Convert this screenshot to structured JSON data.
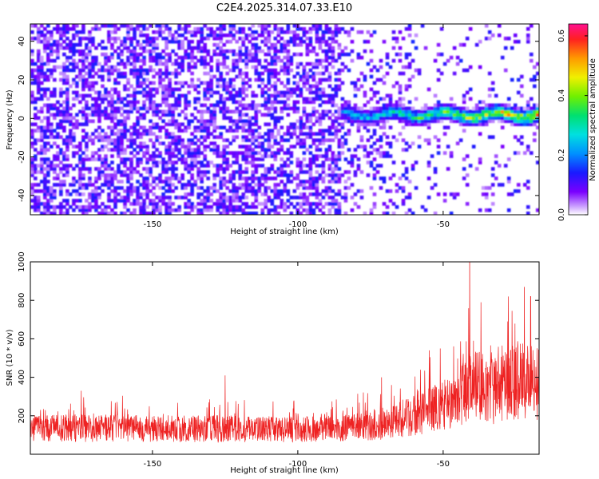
{
  "chart_data": [
    {
      "type": "heatmap",
      "title": "C2E4.2025.314.07.33.E10",
      "xlabel": "Height of straight line (km)",
      "ylabel": "Frequency (Hz)",
      "xlim": [
        -192,
        -17
      ],
      "ylim": [
        -50,
        49
      ],
      "xticks": [
        -150,
        -100,
        -50
      ],
      "yticks": [
        -40,
        -20,
        0,
        20,
        40
      ],
      "colorbar": {
        "label": "Normalized spectral amplitude",
        "range": [
          0.0,
          0.64
        ],
        "ticks": [
          0.0,
          0.2,
          0.4,
          0.6
        ],
        "tick_labels": [
          "0.0",
          "0.2",
          "0.4",
          "0.6"
        ]
      },
      "signal_band": {
        "start_km": -85,
        "end_km": -17,
        "center_hz": 2,
        "width_hz": 10
      }
    },
    {
      "type": "line",
      "xlabel": "Height of straight line (km)",
      "ylabel": "SNR (10 * v/v)",
      "xlim": [
        -192,
        -17
      ],
      "ylim": [
        0,
        1000
      ],
      "xticks": [
        -150,
        -100,
        -50
      ],
      "yticks": [
        200,
        400,
        600,
        800,
        1000
      ],
      "series": [
        {
          "name": "SNR",
          "color": "#ee2222",
          "x": [
            -192,
            -180,
            -170,
            -160,
            -150,
            -140,
            -130,
            -120,
            -110,
            -100,
            -90,
            -80,
            -75,
            -70,
            -65,
            -60,
            -55,
            -50,
            -45,
            -42,
            -40,
            -38,
            -35,
            -30,
            -25,
            -20,
            -17
          ],
          "y": [
            140,
            145,
            140,
            145,
            140,
            140,
            140,
            140,
            140,
            140,
            145,
            150,
            160,
            170,
            190,
            210,
            240,
            270,
            310,
            350,
            420,
            380,
            330,
            360,
            400,
            420,
            380
          ],
          "peaks": [
            {
              "x": -174.5,
              "y": 330
            },
            {
              "x": -125.0,
              "y": 410
            },
            {
              "x": -71.2,
              "y": 400
            },
            {
              "x": -54.8,
              "y": 540
            },
            {
              "x": -51.0,
              "y": 550
            },
            {
              "x": -40.9,
              "y": 1000
            },
            {
              "x": -37.0,
              "y": 790
            },
            {
              "x": -27.6,
              "y": 820
            },
            {
              "x": -22.1,
              "y": 870
            },
            {
              "x": -19.9,
              "y": 820
            }
          ]
        }
      ]
    }
  ],
  "colors": {
    "heat_background": "#ffffff",
    "snr_line": "#ee2222"
  }
}
